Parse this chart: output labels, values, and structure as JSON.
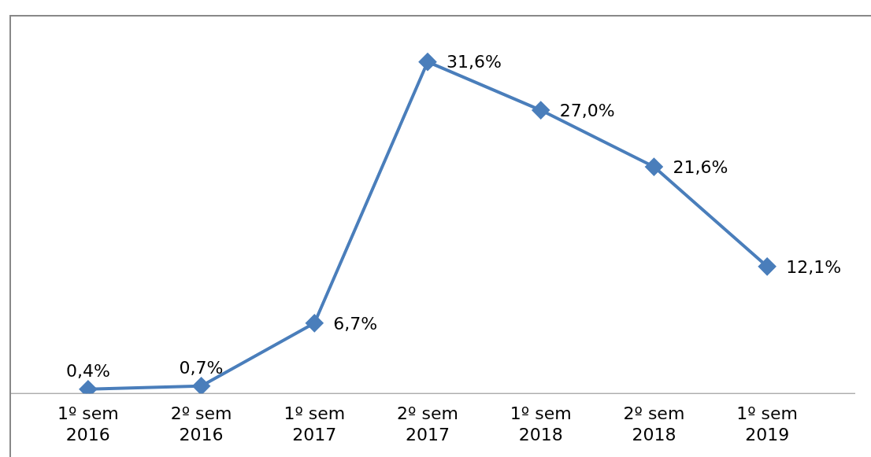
{
  "chart_data": {
    "type": "line",
    "categories": [
      "1º sem 2016",
      "2º sem 2016",
      "1º sem 2017",
      "2º sem 2017",
      "1º sem 2018",
      "2º sem 2018",
      "1º sem 2019"
    ],
    "series": [
      {
        "color": "#4a7ebb",
        "values": [
          0.4,
          0.7,
          6.7,
          31.6,
          27.0,
          21.6,
          12.1
        ],
        "value_labels": [
          "0,4%",
          "0,7%",
          "6,7%",
          "31,6%",
          "27,0%",
          "21,6%",
          "12,1%"
        ]
      }
    ],
    "ylim": [
      0,
      36
    ],
    "marker": "diamond",
    "line_style": "solid",
    "grid": false,
    "legend": false
  }
}
